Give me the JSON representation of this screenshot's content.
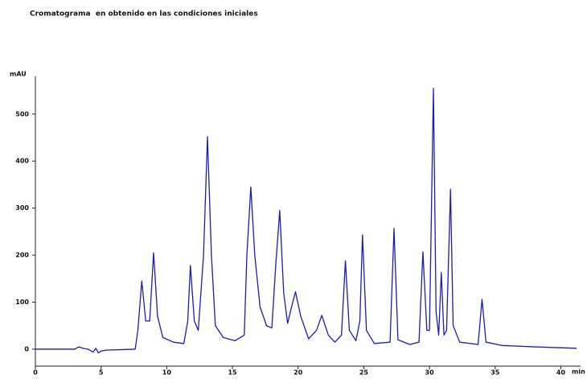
{
  "chart_data": {
    "type": "line",
    "title": "Cromatograma  en obtenido en las condiciones iniciales",
    "ylabel": "mAU",
    "xlabel": "min",
    "x": [
      0,
      3.0,
      3.3,
      3.6,
      4.0,
      4.4,
      4.6,
      4.8,
      5.0,
      5.4,
      7.6,
      7.8,
      8.1,
      8.4,
      8.7,
      9.0,
      9.3,
      9.7,
      10.5,
      11.3,
      11.6,
      11.8,
      12.1,
      12.4,
      12.8,
      13.1,
      13.4,
      13.7,
      14.3,
      15.2,
      15.9,
      16.1,
      16.4,
      16.7,
      17.1,
      17.6,
      18.0,
      18.3,
      18.6,
      18.9,
      19.2,
      19.5,
      19.8,
      20.2,
      20.8,
      21.4,
      21.8,
      22.3,
      22.8,
      23.3,
      23.6,
      23.9,
      24.4,
      24.7,
      24.9,
      25.2,
      25.8,
      27.0,
      27.3,
      27.6,
      28.5,
      29.2,
      29.5,
      29.8,
      30.0,
      30.3,
      30.5,
      30.7,
      30.9,
      31.1,
      31.3,
      31.6,
      31.8,
      32.3,
      33.7,
      34.0,
      34.3,
      35.5,
      38,
      41.2
    ],
    "series": [
      {
        "color": "#1c1cb0",
        "values": [
          0,
          0,
          5,
          2,
          0,
          -6,
          2,
          -8,
          -4,
          -2,
          0,
          40,
          145,
          60,
          60,
          205,
          70,
          25,
          15,
          12,
          60,
          178,
          60,
          40,
          200,
          452,
          200,
          50,
          25,
          18,
          30,
          200,
          345,
          200,
          90,
          50,
          45,
          180,
          295,
          120,
          55,
          90,
          122,
          70,
          22,
          40,
          72,
          30,
          15,
          30,
          188,
          40,
          18,
          60,
          243,
          40,
          12,
          15,
          257,
          20,
          10,
          15,
          207,
          40,
          40,
          555,
          80,
          30,
          163,
          30,
          40,
          340,
          50,
          15,
          10,
          106,
          15,
          8,
          5,
          2
        ]
      }
    ],
    "xlim": [
      0,
      41.5
    ],
    "ylim": [
      -36,
      580
    ],
    "xticks": [
      0,
      5,
      10,
      15,
      20,
      25,
      30,
      35,
      40
    ],
    "yticks": [
      0,
      100,
      200,
      300,
      400,
      500
    ]
  }
}
